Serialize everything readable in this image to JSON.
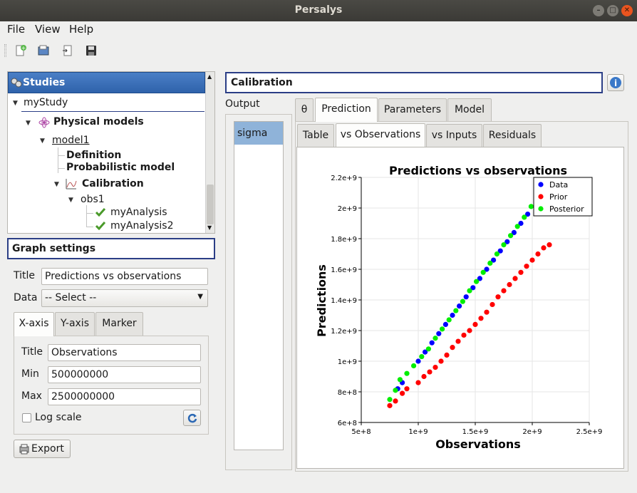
{
  "window": {
    "title": "Persalys"
  },
  "menu": {
    "file": "File",
    "view": "View",
    "help": "Help"
  },
  "studies": {
    "header": "Studies",
    "study": "myStudy",
    "physical_models": "Physical models",
    "model": "model1",
    "definition": "Definition",
    "probabilistic": "Probabilistic model",
    "calibration": "Calibration",
    "obs": "obs1",
    "analysis1": "myAnalysis",
    "analysis2": "myAnalysis2"
  },
  "graph_settings": {
    "header": "Graph settings",
    "title_label": "Title",
    "title_value": "Predictions vs observations",
    "data_label": "Data",
    "data_value": "-- Select --",
    "tabs": [
      "X-axis",
      "Y-axis",
      "Marker"
    ],
    "axis_title_label": "Title",
    "axis_title_value": "Observations",
    "min_label": "Min",
    "min_value": "500000000",
    "max_label": "Max",
    "max_value": "2500000000",
    "log_scale": "Log scale",
    "export": "Export"
  },
  "calibration": {
    "header": "Calibration",
    "output_label": "Output",
    "output_item": "sigma",
    "tabs": [
      "θ",
      "Prediction",
      "Parameters",
      "Model"
    ],
    "subtabs": [
      "Table",
      "vs Observations",
      "vs Inputs",
      "Residuals"
    ]
  },
  "colors": {
    "data": "#0000ff",
    "prior": "#ff0000",
    "posterior": "#00ee00",
    "header_blue": "#2f63ab"
  },
  "chart_data": {
    "type": "scatter",
    "title": "Predictions vs observations",
    "xlabel": "Observations",
    "ylabel": "Predictions",
    "xlim": [
      500000000,
      2500000000
    ],
    "ylim": [
      600000000,
      2200000000
    ],
    "xticks": [
      "5e+8",
      "1e+9",
      "1.5e+9",
      "2e+9",
      "2.5e+9"
    ],
    "yticks": [
      "6e+8",
      "8e+8",
      "1e+9",
      "1.2e+9",
      "1.4e+9",
      "1.6e+9",
      "1.8e+9",
      "2e+9",
      "2.2e+9"
    ],
    "legend_position": "top-right",
    "series": [
      {
        "name": "Data",
        "color": "#0000ff",
        "points": [
          [
            820000000,
            820000000
          ],
          [
            860000000,
            860000000
          ],
          [
            1000000000,
            1000000000
          ],
          [
            1060000000,
            1060000000
          ],
          [
            1120000000,
            1120000000
          ],
          [
            1180000000,
            1180000000
          ],
          [
            1240000000,
            1240000000
          ],
          [
            1300000000,
            1300000000
          ],
          [
            1360000000,
            1360000000
          ],
          [
            1420000000,
            1420000000
          ],
          [
            1480000000,
            1480000000
          ],
          [
            1540000000,
            1540000000
          ],
          [
            1600000000,
            1600000000
          ],
          [
            1660000000,
            1660000000
          ],
          [
            1720000000,
            1720000000
          ],
          [
            1780000000,
            1780000000
          ],
          [
            1840000000,
            1840000000
          ],
          [
            1900000000,
            1900000000
          ],
          [
            1960000000,
            1960000000
          ]
        ]
      },
      {
        "name": "Prior",
        "color": "#ff0000",
        "points": [
          [
            750000000,
            710000000
          ],
          [
            800000000,
            740000000
          ],
          [
            860000000,
            790000000
          ],
          [
            900000000,
            820000000
          ],
          [
            1000000000,
            860000000
          ],
          [
            1050000000,
            900000000
          ],
          [
            1100000000,
            930000000
          ],
          [
            1150000000,
            960000000
          ],
          [
            1200000000,
            1000000000
          ],
          [
            1250000000,
            1040000000
          ],
          [
            1300000000,
            1090000000
          ],
          [
            1350000000,
            1130000000
          ],
          [
            1400000000,
            1170000000
          ],
          [
            1450000000,
            1200000000
          ],
          [
            1500000000,
            1240000000
          ],
          [
            1550000000,
            1280000000
          ],
          [
            1600000000,
            1320000000
          ],
          [
            1650000000,
            1370000000
          ],
          [
            1700000000,
            1420000000
          ],
          [
            1750000000,
            1460000000
          ],
          [
            1800000000,
            1500000000
          ],
          [
            1850000000,
            1540000000
          ],
          [
            1900000000,
            1580000000
          ],
          [
            1950000000,
            1620000000
          ],
          [
            2000000000,
            1660000000
          ],
          [
            2050000000,
            1700000000
          ],
          [
            2100000000,
            1740000000
          ],
          [
            2150000000,
            1760000000
          ]
        ]
      },
      {
        "name": "Posterior",
        "color": "#00ee00",
        "points": [
          [
            750000000,
            750000000
          ],
          [
            800000000,
            810000000
          ],
          [
            840000000,
            880000000
          ],
          [
            900000000,
            920000000
          ],
          [
            960000000,
            970000000
          ],
          [
            1030000000,
            1030000000
          ],
          [
            1090000000,
            1080000000
          ],
          [
            1150000000,
            1150000000
          ],
          [
            1210000000,
            1210000000
          ],
          [
            1270000000,
            1270000000
          ],
          [
            1330000000,
            1330000000
          ],
          [
            1390000000,
            1390000000
          ],
          [
            1450000000,
            1460000000
          ],
          [
            1510000000,
            1520000000
          ],
          [
            1570000000,
            1580000000
          ],
          [
            1630000000,
            1640000000
          ],
          [
            1690000000,
            1700000000
          ],
          [
            1750000000,
            1760000000
          ],
          [
            1810000000,
            1820000000
          ],
          [
            1870000000,
            1880000000
          ],
          [
            1930000000,
            1940000000
          ],
          [
            1990000000,
            2010000000
          ]
        ]
      }
    ]
  }
}
